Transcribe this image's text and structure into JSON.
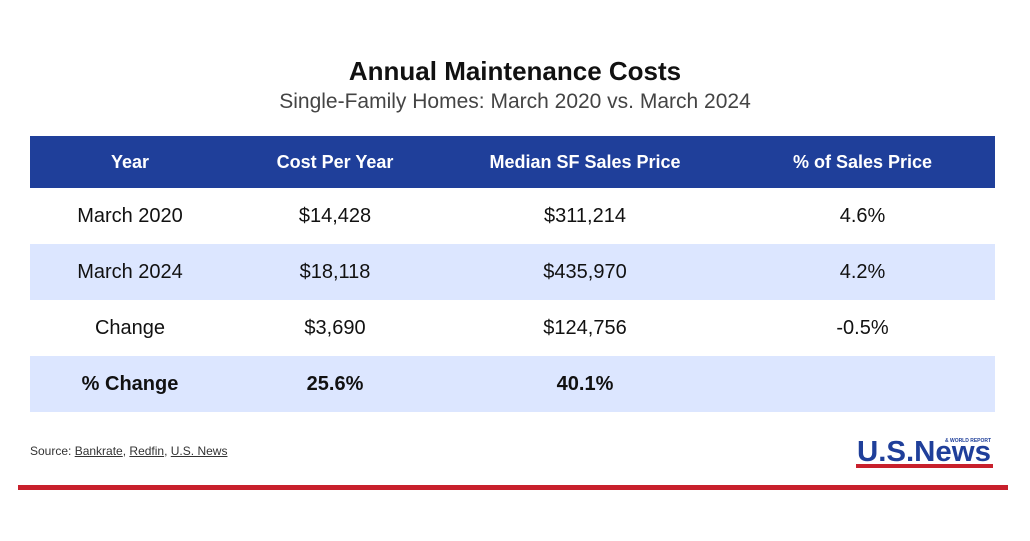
{
  "title": "Annual Maintenance Costs",
  "subtitle": "Single-Family Homes: March 2020 vs. March 2024",
  "colors": {
    "header_bg": "#1f3f9a",
    "row_shade": "#dce6ff",
    "accent_line": "#c8202c",
    "logo_blue": "#1f3f9a",
    "logo_red": "#c8202c"
  },
  "chart_data": {
    "type": "table",
    "columns": [
      "Year",
      "Cost Per Year",
      "Median SF Sales Price",
      "% of Sales Price"
    ],
    "rows": [
      [
        "March 2020",
        "$14,428",
        "$311,214",
        "4.6%"
      ],
      [
        "March 2024",
        "$18,118",
        "$435,970",
        "4.2%"
      ],
      [
        "Change",
        "$3,690",
        "$124,756",
        "-0.5%"
      ],
      [
        "% Change",
        "25.6%",
        "40.1%",
        ""
      ]
    ]
  },
  "source": {
    "prefix": "Source: ",
    "links": [
      "Bankrate",
      "Redfin",
      "U.S. News"
    ],
    "separator": ", "
  },
  "logo": {
    "main": "U.S.News",
    "small": "& WORLD REPORT"
  }
}
